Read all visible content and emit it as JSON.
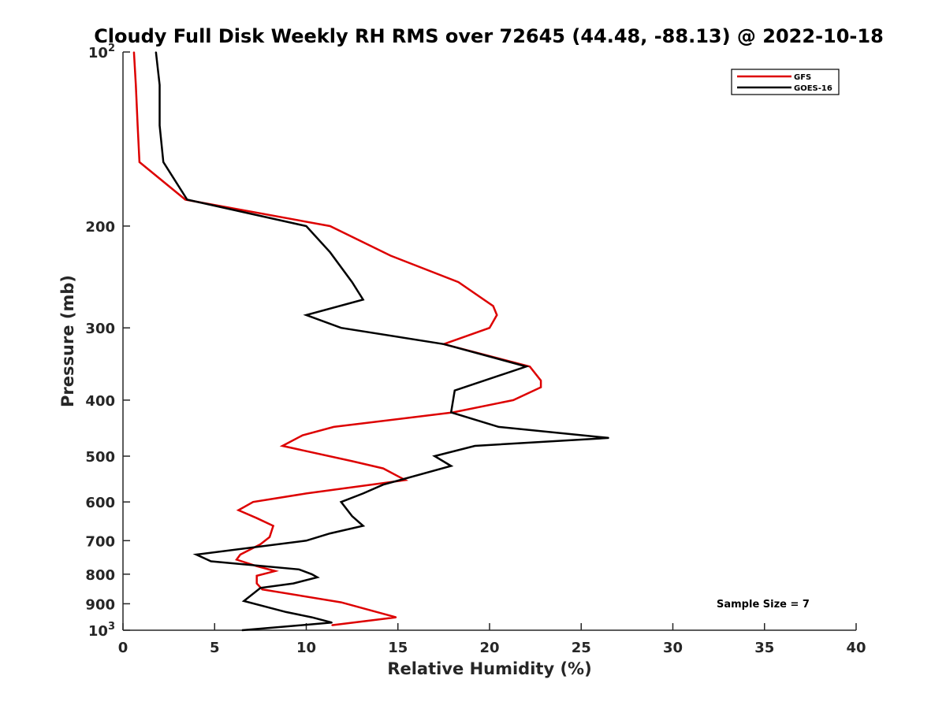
{
  "chart_data": {
    "type": "line",
    "title": "Cloudy Full Disk Weekly RH RMS over 72645 (44.48, -88.13) @ 2022-10-18",
    "xlabel": "Relative Humidity (%)",
    "ylabel": "Pressure (mb)",
    "xlim": [
      0,
      40
    ],
    "ylim": [
      100,
      1000
    ],
    "yscale": "log",
    "y_reversed": true,
    "grid": false,
    "legend_position": "top-right",
    "x_ticks": [
      "0",
      "5",
      "10",
      "15",
      "20",
      "25",
      "30",
      "35",
      "40"
    ],
    "y_ticks": [
      {
        "value": 100,
        "base": "10",
        "exp": "2"
      },
      {
        "value": 200,
        "label": "200"
      },
      {
        "value": 300,
        "label": "300"
      },
      {
        "value": 400,
        "label": "400"
      },
      {
        "value": 500,
        "label": "500"
      },
      {
        "value": 600,
        "label": "600"
      },
      {
        "value": 700,
        "label": "700"
      },
      {
        "value": 800,
        "label": "800"
      },
      {
        "value": 900,
        "label": "900"
      },
      {
        "value": 1000,
        "base": "10",
        "exp": "3"
      }
    ],
    "annotation": "Sample Size = 7",
    "series": [
      {
        "name": "GFS",
        "color": "#dd0000",
        "points": [
          {
            "x": 0.6,
            "y": 100
          },
          {
            "x": 0.7,
            "y": 114
          },
          {
            "x": 0.8,
            "y": 134
          },
          {
            "x": 0.9,
            "y": 155
          },
          {
            "x": 3.4,
            "y": 180
          },
          {
            "x": 11.3,
            "y": 200
          },
          {
            "x": 14.6,
            "y": 225
          },
          {
            "x": 18.3,
            "y": 250
          },
          {
            "x": 20.2,
            "y": 275
          },
          {
            "x": 20.4,
            "y": 285
          },
          {
            "x": 20.0,
            "y": 300
          },
          {
            "x": 17.5,
            "y": 320
          },
          {
            "x": 22.2,
            "y": 350
          },
          {
            "x": 22.8,
            "y": 370
          },
          {
            "x": 22.8,
            "y": 380
          },
          {
            "x": 21.3,
            "y": 400
          },
          {
            "x": 18.0,
            "y": 420
          },
          {
            "x": 11.5,
            "y": 445
          },
          {
            "x": 9.8,
            "y": 460
          },
          {
            "x": 8.7,
            "y": 480
          },
          {
            "x": 12.5,
            "y": 510
          },
          {
            "x": 14.2,
            "y": 525
          },
          {
            "x": 15.4,
            "y": 550
          },
          {
            "x": 10.0,
            "y": 580
          },
          {
            "x": 7.1,
            "y": 600
          },
          {
            "x": 6.3,
            "y": 620
          },
          {
            "x": 7.3,
            "y": 640
          },
          {
            "x": 8.2,
            "y": 660
          },
          {
            "x": 8.0,
            "y": 690
          },
          {
            "x": 7.5,
            "y": 710
          },
          {
            "x": 6.4,
            "y": 740
          },
          {
            "x": 6.2,
            "y": 755
          },
          {
            "x": 7.3,
            "y": 775
          },
          {
            "x": 8.3,
            "y": 790
          },
          {
            "x": 7.3,
            "y": 805
          },
          {
            "x": 7.3,
            "y": 830
          },
          {
            "x": 7.6,
            "y": 850
          },
          {
            "x": 11.9,
            "y": 895
          },
          {
            "x": 14.9,
            "y": 950
          },
          {
            "x": 11.4,
            "y": 980
          }
        ]
      },
      {
        "name": "GOES-16",
        "color": "#000000",
        "points": [
          {
            "x": 1.8,
            "y": 100
          },
          {
            "x": 2.0,
            "y": 114
          },
          {
            "x": 2.0,
            "y": 134
          },
          {
            "x": 2.2,
            "y": 155
          },
          {
            "x": 3.5,
            "y": 180
          },
          {
            "x": 10.0,
            "y": 200
          },
          {
            "x": 11.3,
            "y": 222
          },
          {
            "x": 12.5,
            "y": 250
          },
          {
            "x": 13.1,
            "y": 268
          },
          {
            "x": 10.0,
            "y": 285
          },
          {
            "x": 11.9,
            "y": 300
          },
          {
            "x": 17.5,
            "y": 320
          },
          {
            "x": 22.0,
            "y": 350
          },
          {
            "x": 18.1,
            "y": 385
          },
          {
            "x": 17.9,
            "y": 420
          },
          {
            "x": 20.5,
            "y": 445
          },
          {
            "x": 26.5,
            "y": 465
          },
          {
            "x": 19.2,
            "y": 480
          },
          {
            "x": 17.0,
            "y": 500
          },
          {
            "x": 17.9,
            "y": 520
          },
          {
            "x": 14.2,
            "y": 560
          },
          {
            "x": 13.1,
            "y": 580
          },
          {
            "x": 11.9,
            "y": 600
          },
          {
            "x": 12.5,
            "y": 635
          },
          {
            "x": 13.1,
            "y": 660
          },
          {
            "x": 11.3,
            "y": 680
          },
          {
            "x": 10.0,
            "y": 700
          },
          {
            "x": 4.0,
            "y": 740
          },
          {
            "x": 4.8,
            "y": 760
          },
          {
            "x": 9.6,
            "y": 785
          },
          {
            "x": 10.3,
            "y": 800
          },
          {
            "x": 10.6,
            "y": 810
          },
          {
            "x": 9.3,
            "y": 830
          },
          {
            "x": 7.5,
            "y": 845
          },
          {
            "x": 6.6,
            "y": 890
          },
          {
            "x": 8.9,
            "y": 930
          },
          {
            "x": 10.3,
            "y": 950
          },
          {
            "x": 11.4,
            "y": 970
          },
          {
            "x": 6.5,
            "y": 1000
          }
        ]
      }
    ]
  }
}
